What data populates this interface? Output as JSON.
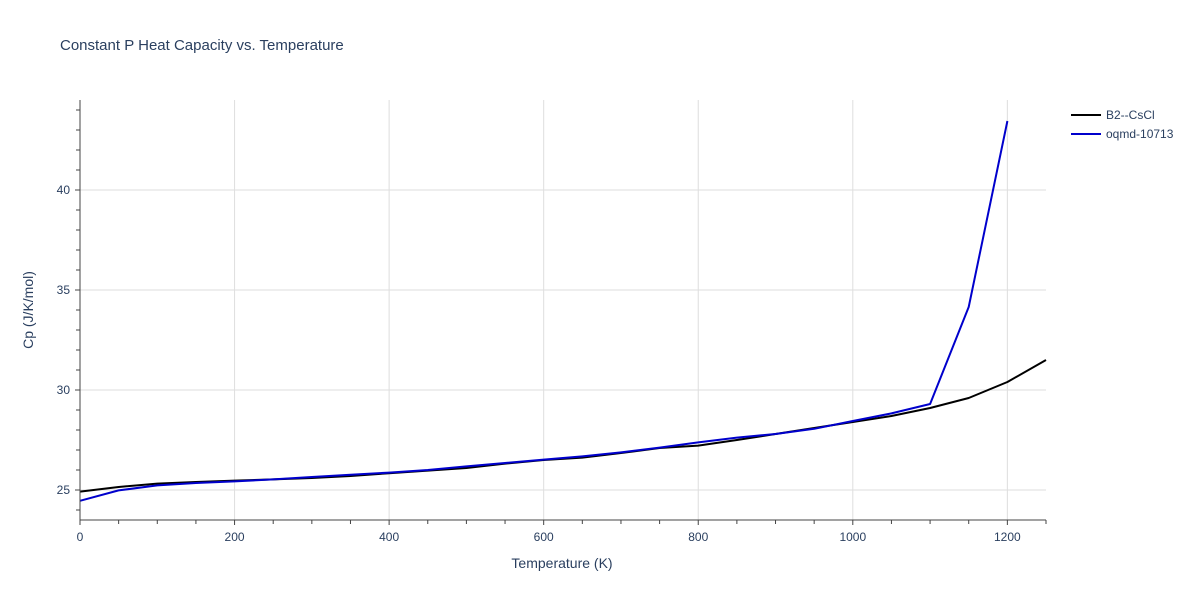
{
  "chart_data": {
    "type": "line",
    "title": "Constant P Heat Capacity vs. Temperature",
    "xlabel": "Temperature (K)",
    "ylabel": "Cp (J/K/mol)",
    "xlim": [
      0,
      1250
    ],
    "ylim": [
      23.5,
      44.5
    ],
    "x_ticks": [
      0,
      200,
      400,
      600,
      800,
      1000,
      1200
    ],
    "y_ticks": [
      25,
      30,
      35,
      40
    ],
    "x_tick_labels": [
      "0",
      "200",
      "400",
      "600",
      "800",
      "1000",
      "1200"
    ],
    "y_tick_labels": [
      "25",
      "30",
      "35",
      "40"
    ],
    "grid": true,
    "legend_position": "top-right",
    "series": [
      {
        "name": "B2--CsCl",
        "color": "#000000",
        "x": [
          0,
          50,
          100,
          150,
          200,
          250,
          300,
          350,
          400,
          450,
          500,
          550,
          600,
          650,
          700,
          750,
          800,
          850,
          900,
          950,
          1000,
          1050,
          1100,
          1150,
          1200,
          1250
        ],
        "y": [
          24.92,
          25.15,
          25.32,
          25.4,
          25.47,
          25.53,
          25.6,
          25.7,
          25.84,
          25.97,
          26.1,
          26.32,
          26.5,
          26.62,
          26.85,
          27.1,
          27.22,
          27.5,
          27.8,
          28.1,
          28.4,
          28.7,
          29.1,
          29.6,
          30.4,
          31.5
        ]
      },
      {
        "name": "oqmd-10713",
        "color": "#0000cc",
        "x": [
          0,
          50,
          100,
          150,
          200,
          250,
          300,
          350,
          400,
          450,
          500,
          550,
          600,
          650,
          700,
          750,
          800,
          850,
          900,
          950,
          1000,
          1050,
          1100,
          1150,
          1200
        ],
        "y": [
          24.46,
          24.98,
          25.23,
          25.35,
          25.43,
          25.53,
          25.65,
          25.76,
          25.87,
          26.0,
          26.18,
          26.35,
          26.52,
          26.68,
          26.88,
          27.12,
          27.38,
          27.62,
          27.8,
          28.06,
          28.45,
          28.83,
          29.3,
          34.15,
          43.45
        ]
      }
    ]
  }
}
